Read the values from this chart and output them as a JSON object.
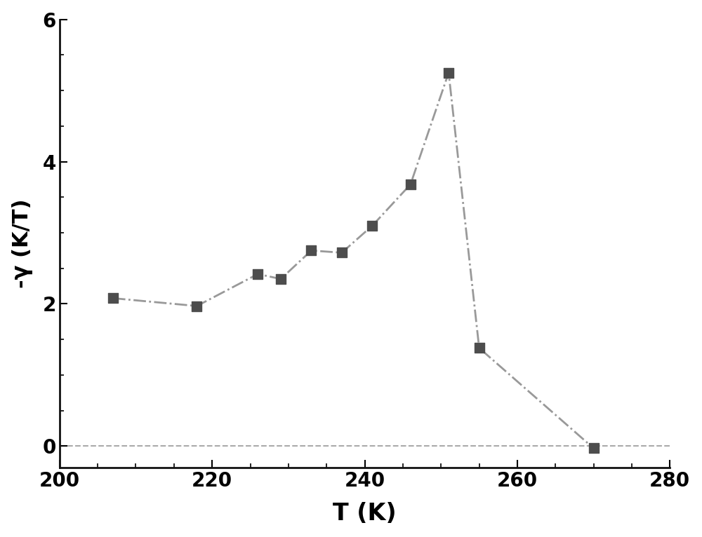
{
  "x_data": [
    207,
    218,
    226,
    229,
    233,
    237,
    241,
    246,
    251,
    255,
    270
  ],
  "y_data": [
    2.08,
    1.97,
    2.42,
    2.35,
    2.75,
    2.72,
    3.1,
    3.68,
    5.25,
    1.38,
    -0.03
  ],
  "xlabel": "T (K)",
  "ylabel": "-γ (K/T)",
  "xlim": [
    200,
    280
  ],
  "ylim": [
    -0.3,
    6
  ],
  "xticks": [
    200,
    220,
    240,
    260,
    280
  ],
  "yticks": [
    0,
    2,
    4,
    6
  ],
  "marker_color": "#4d4d4d",
  "line_color": "#999999",
  "hline_color": "#aaaaaa",
  "background_color": "#ffffff",
  "xlabel_fontsize": 24,
  "ylabel_fontsize": 22,
  "tick_fontsize": 20,
  "spine_color": "#111111"
}
